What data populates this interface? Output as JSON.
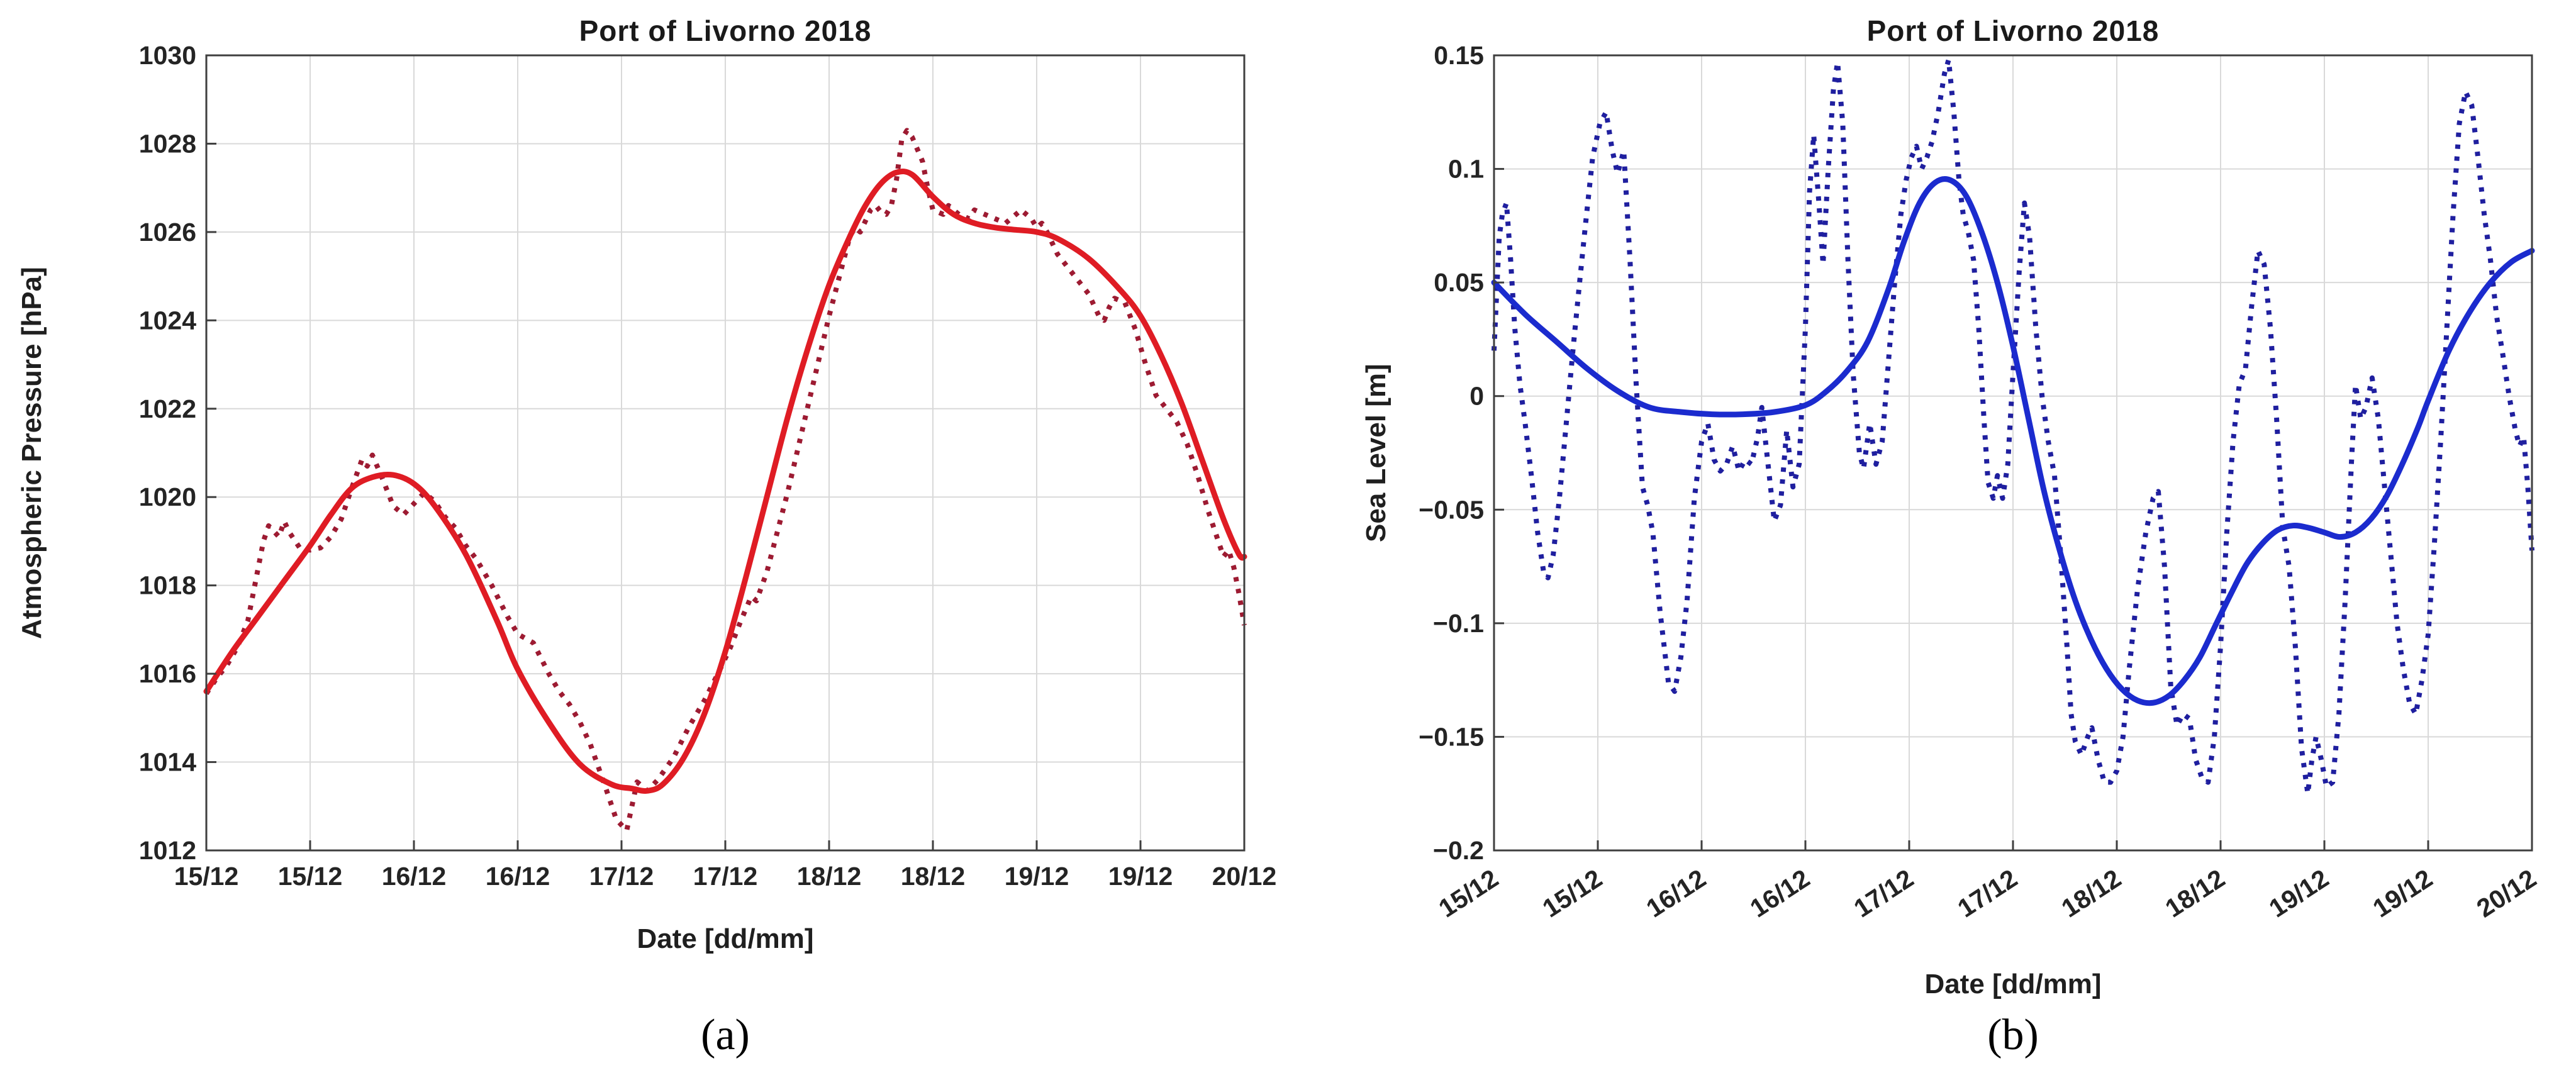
{
  "figure": {
    "background": "#ffffff",
    "grid_color": "#d9d9d9",
    "axis_color": "#3f3f3f",
    "tick_text_color": "#242424"
  },
  "chart_data": [
    {
      "type": "line",
      "panel": "a",
      "caption": "(a)",
      "title": "Port of Livorno 2018",
      "xlabel": "Date [dd/mm]",
      "ylabel": "Atmospheric Pressure [hPa]",
      "x_tick_labels": [
        "15/12",
        "15/12",
        "16/12",
        "16/12",
        "17/12",
        "17/12",
        "18/12",
        "18/12",
        "19/12",
        "19/12",
        "20/12"
      ],
      "x_tick_rotation": 0,
      "ylim": [
        1012,
        1030
      ],
      "y_ticks": [
        1012,
        1014,
        1016,
        1018,
        1020,
        1022,
        1024,
        1026,
        1028,
        1030
      ],
      "y_tick_labels": [
        "1012",
        "1014",
        "1016",
        "1018",
        "1020",
        "1022",
        "1024",
        "1026",
        "1028",
        "1030"
      ],
      "grid": true,
      "legend": null,
      "series": [
        {
          "name": "observed-pressure",
          "style": "dotted",
          "color": "#9d1b32",
          "x": [
            0,
            0.1,
            0.2,
            0.3,
            0.4,
            0.5,
            0.55,
            0.6,
            0.7,
            0.75,
            0.8,
            0.9,
            1.0,
            1.1,
            1.2,
            1.3,
            1.4,
            1.5,
            1.55,
            1.6,
            1.7,
            1.8,
            1.9,
            2.0,
            2.1,
            2.2,
            2.3,
            2.4,
            2.5,
            2.6,
            2.75,
            2.9,
            3.0,
            3.15,
            3.3,
            3.4,
            3.5,
            3.6,
            3.7,
            3.85,
            3.95,
            4.05,
            4.15,
            4.25,
            4.35,
            4.5,
            4.65,
            4.8,
            4.95,
            5.05,
            5.15,
            5.25,
            5.3,
            5.4,
            5.5,
            5.6,
            5.7,
            5.8,
            5.9,
            6.0,
            6.1,
            6.2,
            6.25,
            6.3,
            6.4,
            6.45,
            6.5,
            6.55,
            6.6,
            6.65,
            6.7,
            6.75,
            6.8,
            6.9,
            6.95,
            7.0,
            7.1,
            7.15,
            7.25,
            7.35,
            7.4,
            7.5,
            7.6,
            7.7,
            7.8,
            7.85,
            7.95,
            8.0,
            8.05,
            8.1,
            8.2,
            8.3,
            8.4,
            8.5,
            8.6,
            8.65,
            8.7,
            8.75,
            8.85,
            8.95,
            9.05,
            9.15,
            9.25,
            9.35,
            9.45,
            9.55,
            9.65,
            9.75,
            9.8,
            9.85,
            9.9,
            9.95,
            10.0
          ],
          "y": [
            1015.55,
            1015.9,
            1016.2,
            1016.6,
            1017.2,
            1018.4,
            1019.0,
            1019.35,
            1019.1,
            1019.45,
            1019.2,
            1018.85,
            1018.8,
            1018.85,
            1019.1,
            1019.5,
            1020.2,
            1020.85,
            1020.7,
            1020.95,
            1020.4,
            1019.8,
            1019.6,
            1019.85,
            1020.1,
            1019.9,
            1019.55,
            1019.3,
            1018.9,
            1018.6,
            1018.0,
            1017.3,
            1016.9,
            1016.7,
            1016.0,
            1015.6,
            1015.3,
            1014.9,
            1014.4,
            1013.4,
            1012.7,
            1012.45,
            1013.55,
            1013.35,
            1013.6,
            1014.1,
            1014.8,
            1015.4,
            1016.1,
            1016.6,
            1017.2,
            1017.75,
            1017.65,
            1018.3,
            1019.2,
            1020.1,
            1021.1,
            1022.1,
            1023.1,
            1024.1,
            1025.0,
            1025.9,
            1026.1,
            1026.0,
            1026.5,
            1026.6,
            1026.45,
            1026.4,
            1026.6,
            1027.2,
            1028.1,
            1028.3,
            1028.15,
            1027.6,
            1027.0,
            1026.5,
            1026.4,
            1026.6,
            1026.4,
            1026.3,
            1026.5,
            1026.4,
            1026.3,
            1026.2,
            1026.4,
            1026.5,
            1026.3,
            1026.1,
            1026.2,
            1026.0,
            1025.5,
            1025.2,
            1024.9,
            1024.6,
            1024.1,
            1024.0,
            1024.3,
            1024.5,
            1024.4,
            1023.8,
            1023.0,
            1022.3,
            1022.0,
            1021.7,
            1021.2,
            1020.5,
            1019.7,
            1019.0,
            1018.65,
            1018.8,
            1018.4,
            1017.8,
            1017.1
          ]
        },
        {
          "name": "smoothed-pressure",
          "style": "solid",
          "color": "#df1c24",
          "x": [
            0,
            0.25,
            0.5,
            0.75,
            1.0,
            1.2,
            1.4,
            1.6,
            1.8,
            2.0,
            2.2,
            2.5,
            2.8,
            3.0,
            3.3,
            3.6,
            3.9,
            4.1,
            4.25,
            4.4,
            4.6,
            4.8,
            5.0,
            5.2,
            5.4,
            5.6,
            5.8,
            6.0,
            6.2,
            6.35,
            6.5,
            6.65,
            6.8,
            7.0,
            7.2,
            7.4,
            7.6,
            7.8,
            8.0,
            8.2,
            8.5,
            8.8,
            9.0,
            9.2,
            9.4,
            9.6,
            9.8,
            9.95,
            10.0
          ],
          "y": [
            1015.6,
            1016.5,
            1017.3,
            1018.1,
            1018.9,
            1019.6,
            1020.2,
            1020.45,
            1020.5,
            1020.3,
            1019.8,
            1018.7,
            1017.2,
            1016.1,
            1014.9,
            1013.95,
            1013.5,
            1013.4,
            1013.35,
            1013.5,
            1014.1,
            1015.1,
            1016.5,
            1018.2,
            1020.0,
            1021.8,
            1023.4,
            1024.8,
            1025.9,
            1026.6,
            1027.1,
            1027.35,
            1027.3,
            1026.8,
            1026.4,
            1026.2,
            1026.1,
            1026.05,
            1026.0,
            1025.85,
            1025.4,
            1024.7,
            1024.1,
            1023.2,
            1022.1,
            1020.8,
            1019.5,
            1018.7,
            1018.65
          ]
        }
      ]
    },
    {
      "type": "line",
      "panel": "b",
      "caption": "(b)",
      "title": "Port of Livorno 2018",
      "xlabel": "Date [dd/mm]",
      "ylabel": "Sea Level [m]",
      "x_tick_labels": [
        "15/12",
        "15/12",
        "16/12",
        "16/12",
        "17/12",
        "17/12",
        "18/12",
        "18/12",
        "19/12",
        "19/12",
        "20/12"
      ],
      "x_tick_rotation": -33,
      "ylim": [
        -0.2,
        0.15
      ],
      "y_ticks": [
        -0.2,
        -0.15,
        -0.1,
        -0.05,
        0,
        0.05,
        0.1,
        0.15
      ],
      "y_tick_labels": [
        "−0.2",
        "−0.15",
        "−0.1",
        "−0.05",
        "0",
        "0.05",
        "0.1",
        "0.15"
      ],
      "grid": true,
      "legend": null,
      "series": [
        {
          "name": "observed-sea-level",
          "style": "dotted",
          "color": "#1f1f9f",
          "x": [
            0,
            0.05,
            0.08,
            0.12,
            0.16,
            0.2,
            0.25,
            0.3,
            0.36,
            0.42,
            0.48,
            0.52,
            0.57,
            0.63,
            0.7,
            0.76,
            0.82,
            0.88,
            0.95,
            1.02,
            1.08,
            1.14,
            1.19,
            1.25,
            1.31,
            1.37,
            1.43,
            1.48,
            1.53,
            1.6,
            1.68,
            1.74,
            1.8,
            1.86,
            1.93,
            2.0,
            2.06,
            2.12,
            2.18,
            2.24,
            2.3,
            2.36,
            2.42,
            2.48,
            2.54,
            2.58,
            2.64,
            2.7,
            2.76,
            2.82,
            2.88,
            2.94,
            3.0,
            3.04,
            3.08,
            3.13,
            3.17,
            3.22,
            3.27,
            3.31,
            3.36,
            3.41,
            3.46,
            3.52,
            3.56,
            3.62,
            3.68,
            3.74,
            3.8,
            3.86,
            3.92,
            3.97,
            4.02,
            4.07,
            4.12,
            4.17,
            4.22,
            4.28,
            4.34,
            4.38,
            4.43,
            4.48,
            4.52,
            4.57,
            4.62,
            4.67,
            4.72,
            4.76,
            4.81,
            4.85,
            4.9,
            4.95,
            5.0,
            5.06,
            5.11,
            5.16,
            5.22,
            5.28,
            5.34,
            5.4,
            5.46,
            5.52,
            5.56,
            5.6,
            5.66,
            5.72,
            5.76,
            5.82,
            5.88,
            5.94,
            6.0,
            6.06,
            6.12,
            6.2,
            6.28,
            6.35,
            6.4,
            6.46,
            6.52,
            6.58,
            6.64,
            6.7,
            6.76,
            6.82,
            6.88,
            6.94,
            7.0,
            7.06,
            7.12,
            7.18,
            7.24,
            7.3,
            7.36,
            7.42,
            7.48,
            7.54,
            7.6,
            7.66,
            7.72,
            7.78,
            7.84,
            7.88,
            7.92,
            7.97,
            8.02,
            8.08,
            8.14,
            8.2,
            8.26,
            8.3,
            8.35,
            8.4,
            8.46,
            8.52,
            8.58,
            8.64,
            8.7,
            8.76,
            8.82,
            8.88,
            8.94,
            9.0,
            9.06,
            9.12,
            9.18,
            9.24,
            9.3,
            9.36,
            9.42,
            9.48,
            9.54,
            9.6,
            9.66,
            9.72,
            9.78,
            9.84,
            9.88,
            9.92,
            9.96,
            10.0
          ],
          "y": [
            0.02,
            0.07,
            0.08,
            0.085,
            0.06,
            0.03,
            0.005,
            -0.012,
            -0.035,
            -0.06,
            -0.078,
            -0.08,
            -0.07,
            -0.045,
            -0.01,
            0.02,
            0.048,
            0.075,
            0.105,
            0.12,
            0.125,
            0.108,
            0.098,
            0.108,
            0.06,
            0.005,
            -0.04,
            -0.048,
            -0.06,
            -0.095,
            -0.126,
            -0.13,
            -0.115,
            -0.09,
            -0.045,
            -0.02,
            -0.012,
            -0.028,
            -0.033,
            -0.03,
            -0.022,
            -0.033,
            -0.028,
            -0.03,
            -0.018,
            -0.005,
            -0.03,
            -0.055,
            -0.048,
            -0.015,
            -0.04,
            -0.03,
            0.03,
            0.09,
            0.115,
            0.085,
            0.058,
            0.1,
            0.135,
            0.147,
            0.12,
            0.06,
            0.01,
            -0.025,
            -0.032,
            -0.012,
            -0.03,
            -0.02,
            0.015,
            0.05,
            0.08,
            0.095,
            0.105,
            0.11,
            0.1,
            0.105,
            0.112,
            0.125,
            0.142,
            0.148,
            0.125,
            0.095,
            0.08,
            0.072,
            0.06,
            0.03,
            -0.01,
            -0.038,
            -0.045,
            -0.035,
            -0.045,
            -0.03,
            0.01,
            0.055,
            0.085,
            0.07,
            0.03,
            0.0,
            -0.02,
            -0.035,
            -0.07,
            -0.11,
            -0.14,
            -0.152,
            -0.158,
            -0.15,
            -0.146,
            -0.16,
            -0.17,
            -0.17,
            -0.165,
            -0.15,
            -0.12,
            -0.085,
            -0.06,
            -0.045,
            -0.042,
            -0.075,
            -0.128,
            -0.145,
            -0.14,
            -0.142,
            -0.16,
            -0.168,
            -0.17,
            -0.15,
            -0.11,
            -0.06,
            -0.02,
            0.005,
            0.012,
            0.04,
            0.064,
            0.058,
            0.03,
            -0.01,
            -0.058,
            -0.075,
            -0.11,
            -0.155,
            -0.175,
            -0.16,
            -0.15,
            -0.16,
            -0.172,
            -0.17,
            -0.14,
            -0.09,
            -0.03,
            0.005,
            -0.01,
            -0.005,
            0.008,
            -0.01,
            -0.04,
            -0.07,
            -0.1,
            -0.12,
            -0.135,
            -0.14,
            -0.125,
            -0.105,
            -0.065,
            -0.02,
            0.03,
            0.08,
            0.12,
            0.134,
            0.128,
            0.105,
            0.08,
            0.06,
            0.035,
            0.018,
            0.0,
            -0.015,
            -0.022,
            -0.018,
            -0.04,
            -0.068
          ]
        },
        {
          "name": "smoothed-sea-level",
          "style": "solid",
          "color": "#1b2bce",
          "x": [
            0,
            0.3,
            0.6,
            0.9,
            1.2,
            1.5,
            1.8,
            2.1,
            2.4,
            2.7,
            3.0,
            3.2,
            3.4,
            3.6,
            3.8,
            3.95,
            4.1,
            4.25,
            4.4,
            4.55,
            4.7,
            4.85,
            5.0,
            5.15,
            5.3,
            5.45,
            5.6,
            5.75,
            5.9,
            6.05,
            6.2,
            6.35,
            6.5,
            6.65,
            6.8,
            6.95,
            7.1,
            7.25,
            7.4,
            7.55,
            7.7,
            7.85,
            8.0,
            8.15,
            8.3,
            8.45,
            8.6,
            8.75,
            8.9,
            9.0,
            9.2,
            9.4,
            9.6,
            9.8,
            10.0
          ],
          "y": [
            0.05,
            0.036,
            0.024,
            0.012,
            0.002,
            -0.005,
            -0.007,
            -0.008,
            -0.008,
            -0.007,
            -0.004,
            0.002,
            0.011,
            0.024,
            0.047,
            0.068,
            0.085,
            0.094,
            0.095,
            0.088,
            0.072,
            0.05,
            0.022,
            -0.01,
            -0.042,
            -0.068,
            -0.09,
            -0.107,
            -0.12,
            -0.129,
            -0.134,
            -0.135,
            -0.132,
            -0.125,
            -0.115,
            -0.101,
            -0.087,
            -0.074,
            -0.065,
            -0.059,
            -0.057,
            -0.058,
            -0.06,
            -0.062,
            -0.06,
            -0.054,
            -0.044,
            -0.03,
            -0.014,
            -0.002,
            0.02,
            0.037,
            0.05,
            0.059,
            0.064
          ]
        }
      ]
    }
  ]
}
